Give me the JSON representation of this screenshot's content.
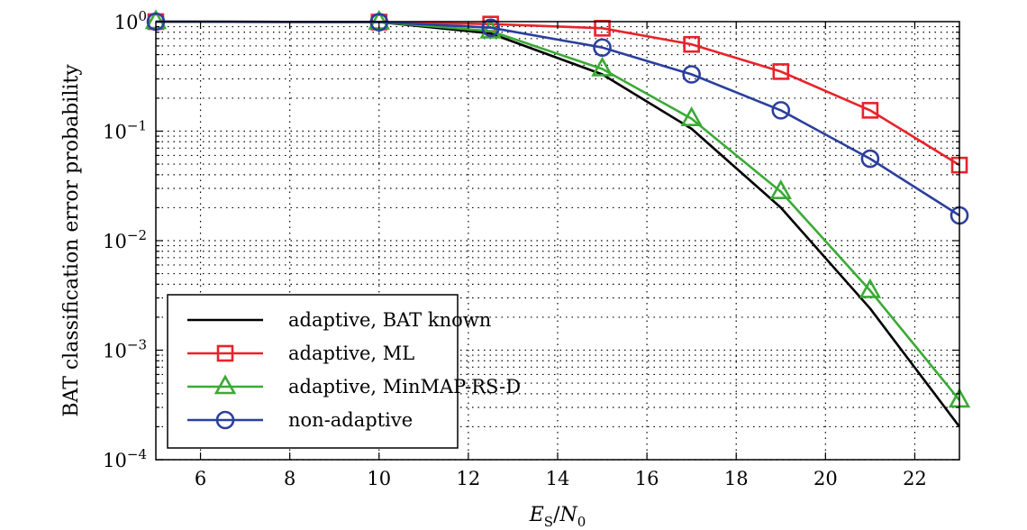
{
  "chart_data": {
    "type": "line",
    "xlabel": "E_S/N_0",
    "ylabel": "BAT classification error probability",
    "xlim": [
      5,
      23
    ],
    "ylim": [
      0.0001,
      1
    ],
    "yscale": "log",
    "grid": "on (major and minor, dotted)",
    "legend_position": "lower-left",
    "x_ticks": [
      6,
      8,
      10,
      12,
      14,
      16,
      18,
      20,
      22
    ],
    "x_tick_labels": [
      "6",
      "8",
      "10",
      "12",
      "14",
      "16",
      "18",
      "20",
      "22"
    ],
    "y_ticks": [
      0.0001,
      0.001,
      0.01,
      0.1,
      1
    ],
    "y_tick_labels": [
      {
        "base": "10",
        "exp": "−4"
      },
      {
        "base": "10",
        "exp": "−3"
      },
      {
        "base": "10",
        "exp": "−2"
      },
      {
        "base": "10",
        "exp": "−1"
      },
      {
        "base": "10",
        "exp": "0"
      }
    ],
    "series": [
      {
        "name": "adaptive, BAT known",
        "color": "#000000",
        "marker": "none",
        "x": [
          5,
          10,
          12.5,
          15,
          17,
          19,
          21,
          23
        ],
        "y": [
          1.0,
          0.99,
          0.78,
          0.33,
          0.105,
          0.02,
          0.0024,
          0.0002
        ]
      },
      {
        "name": "adaptive, ML",
        "color": "#e8232a",
        "marker": "square",
        "x": [
          5,
          10,
          12.5,
          15,
          17,
          19,
          21,
          23
        ],
        "y": [
          1.0,
          0.99,
          0.95,
          0.87,
          0.62,
          0.35,
          0.155,
          0.049
        ]
      },
      {
        "name": "adaptive, MinMAP-RS-D",
        "color": "#3aaa35",
        "marker": "triangle",
        "x": [
          5,
          10,
          12.5,
          15,
          17,
          19,
          21,
          23
        ],
        "y": [
          1.0,
          0.99,
          0.82,
          0.37,
          0.13,
          0.028,
          0.0035,
          0.00035
        ]
      },
      {
        "name": "non-adaptive",
        "color": "#2b3f9e",
        "marker": "circle",
        "x": [
          5,
          10,
          12.5,
          15,
          17,
          19,
          21,
          23
        ],
        "y": [
          1.0,
          0.99,
          0.88,
          0.58,
          0.33,
          0.155,
          0.056,
          0.017
        ]
      }
    ]
  }
}
